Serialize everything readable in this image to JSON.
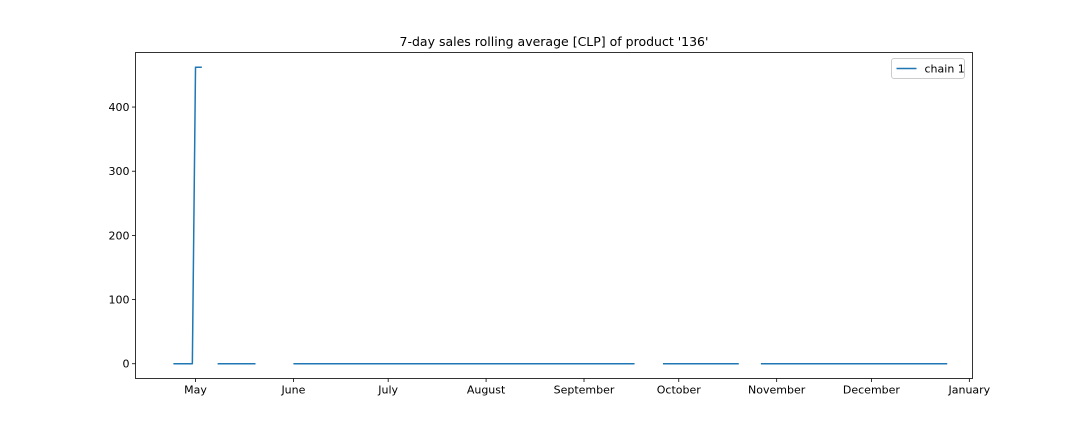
{
  "chart_data": {
    "type": "line",
    "title": "7-day sales rolling average [CLP] of product '136'",
    "xlabel": "",
    "ylabel": "",
    "x_axis_kind": "date",
    "xlim": [
      "2021-04-12",
      "2022-01-02"
    ],
    "ylim": [
      -23,
      485
    ],
    "grid": false,
    "legend_position": "top-right",
    "x_ticks": [
      {
        "date": "2021-05-01",
        "label": "May"
      },
      {
        "date": "2021-06-01",
        "label": "June"
      },
      {
        "date": "2021-07-01",
        "label": "July"
      },
      {
        "date": "2021-08-01",
        "label": "August"
      },
      {
        "date": "2021-09-01",
        "label": "September"
      },
      {
        "date": "2021-10-01",
        "label": "October"
      },
      {
        "date": "2021-11-01",
        "label": "November"
      },
      {
        "date": "2021-12-01",
        "label": "December"
      },
      {
        "date": "2022-01-01",
        "label": "January"
      }
    ],
    "y_ticks": [
      0,
      100,
      200,
      300,
      400
    ],
    "series": [
      {
        "name": "chain 1",
        "color": "#1f77b4",
        "segments": [
          [
            {
              "x": "2021-04-24",
              "y": 0
            },
            {
              "x": "2021-04-30",
              "y": 0
            },
            {
              "x": "2021-05-01",
              "y": 462
            },
            {
              "x": "2021-05-03",
              "y": 462
            }
          ],
          [
            {
              "x": "2021-05-08",
              "y": 0
            },
            {
              "x": "2021-05-20",
              "y": 0
            }
          ],
          [
            {
              "x": "2021-06-01",
              "y": 0
            },
            {
              "x": "2021-09-17",
              "y": 0
            }
          ],
          [
            {
              "x": "2021-09-26",
              "y": 0
            },
            {
              "x": "2021-10-20",
              "y": 0
            }
          ],
          [
            {
              "x": "2021-10-27",
              "y": 0
            },
            {
              "x": "2021-12-25",
              "y": 0
            }
          ]
        ]
      }
    ]
  }
}
